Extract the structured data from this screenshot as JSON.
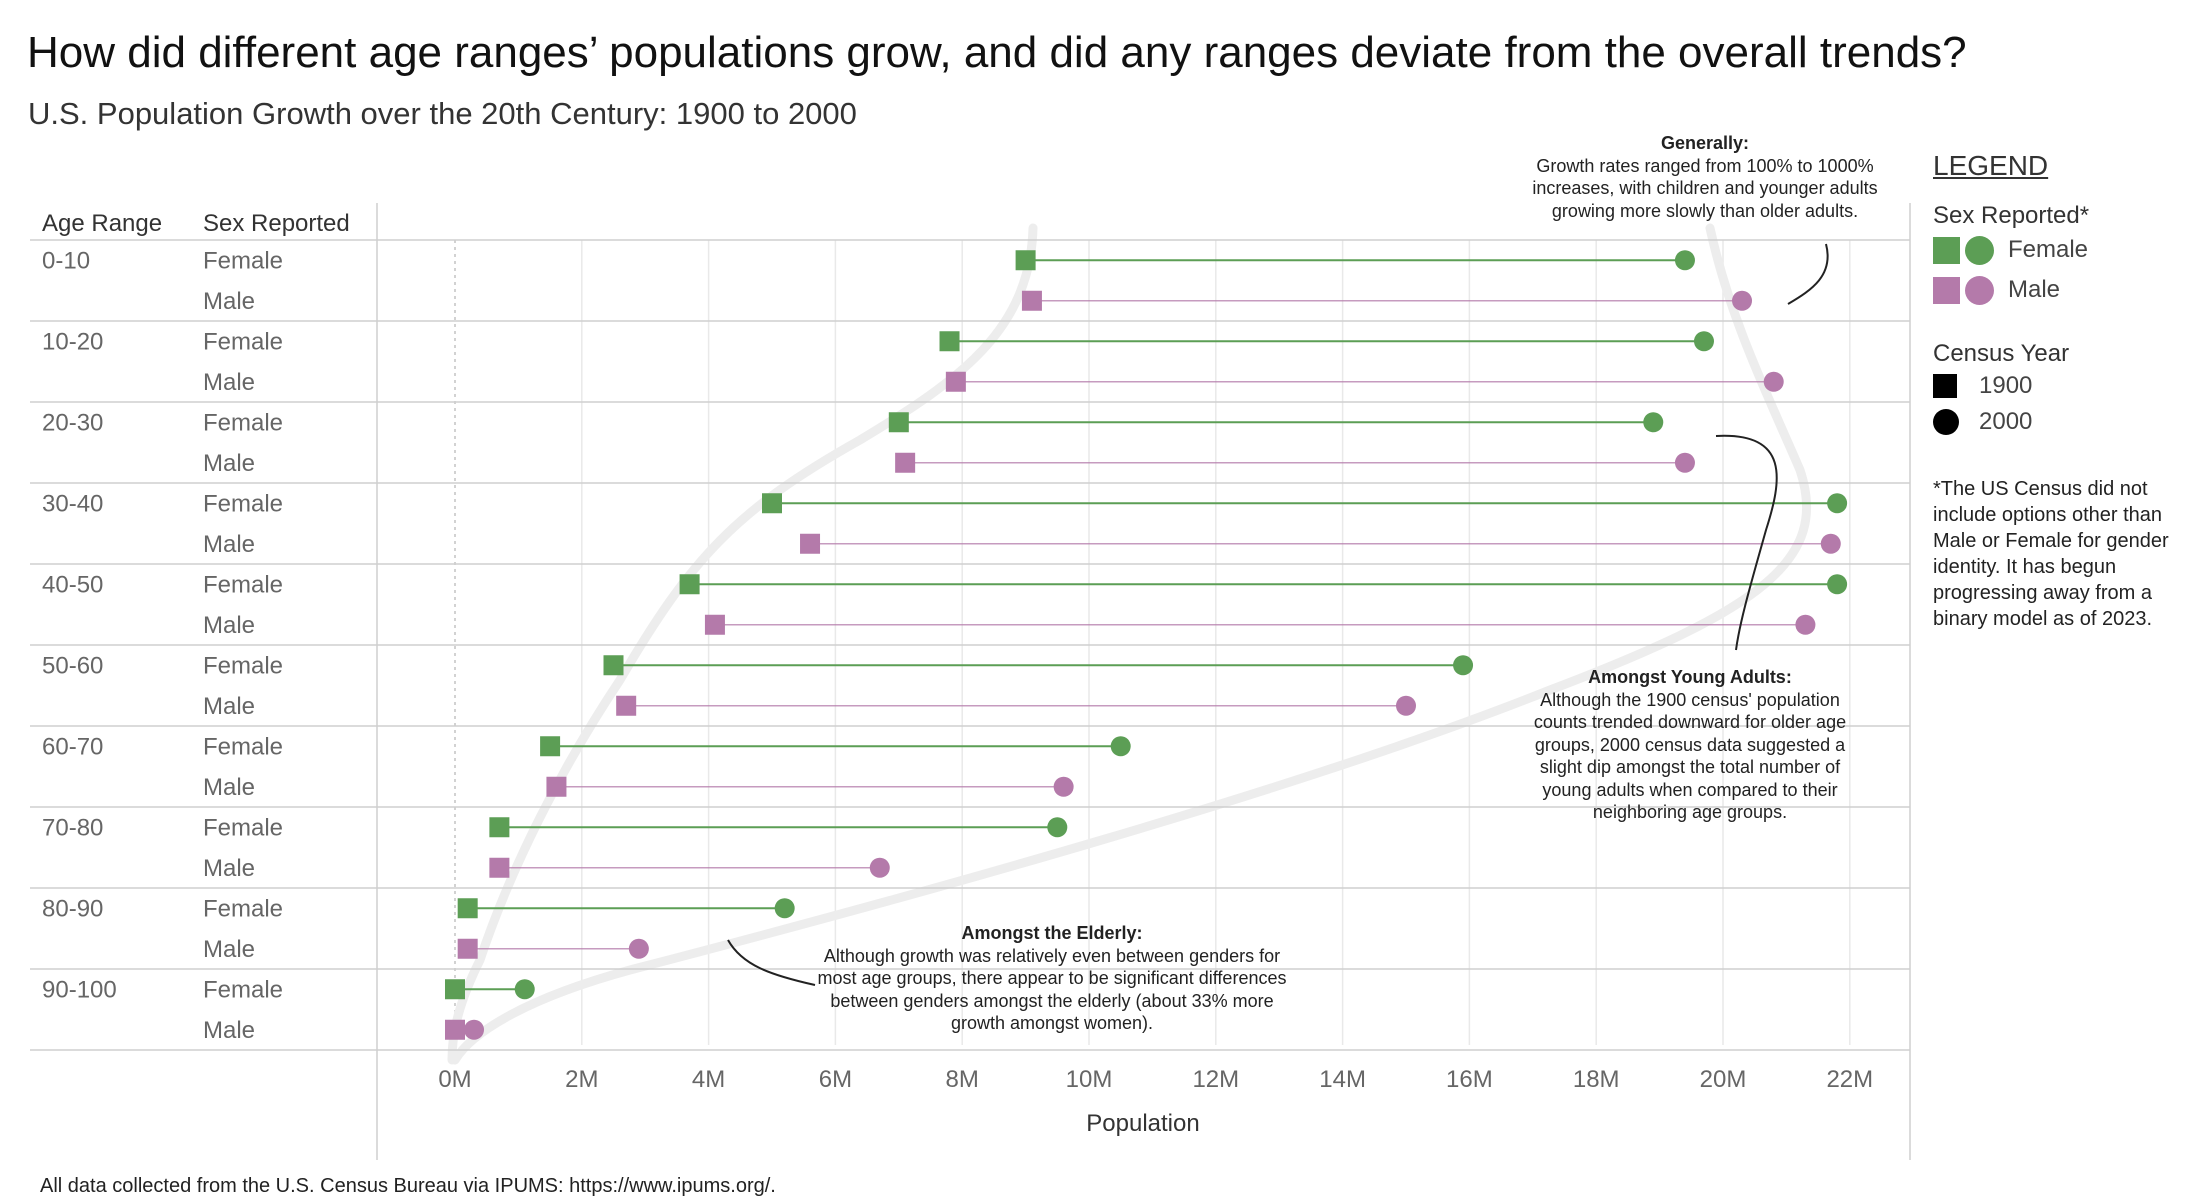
{
  "header": {
    "title": "How did different age ranges’ populations grow, and did any ranges deviate from the overall trends?",
    "subtitle": "U.S. Population Growth over the 20th Century: 1900 to 2000"
  },
  "table_headers": {
    "age_range": "Age Range",
    "sex_reported": "Sex Reported"
  },
  "colors": {
    "female": "#5c9e55",
    "male": "#b47aaa",
    "gridline": "#e9e9e9",
    "separator": "#cfcfcf",
    "trend": "#ededed"
  },
  "legend": {
    "title": "LEGEND",
    "sex_title": "Sex Reported*",
    "sex_items": [
      {
        "label": "Female",
        "color": "#5c9e55"
      },
      {
        "label": "Male",
        "color": "#b47aaa"
      }
    ],
    "year_title": "Census Year",
    "year_items": [
      {
        "label": "1900",
        "shape": "square"
      },
      {
        "label": "2000",
        "shape": "circle"
      }
    ],
    "note": "*The US Census did not include options other than Male or Female for gender identity. It has begun progressing away from a binary model as of 2023."
  },
  "annotations": {
    "generally": {
      "heading": "Generally:",
      "body": "Growth rates ranged from 100% to 1000% increases, with children and younger adults growing more slowly than older adults."
    },
    "young_adults": {
      "heading": "Amongst Young Adults:",
      "body": "Although the 1900 census' population counts trended downward for older age groups, 2000 census data suggested a slight dip amongst the total number of young adults when compared to their neighboring age groups."
    },
    "elderly": {
      "heading": "Amongst the Elderly:",
      "body": "Although growth was relatively even between genders for most age groups, there appear to be significant differences between genders amongst the elderly (about 33% more growth amongst women)."
    }
  },
  "footer": "All data collected from the U.S. Census Bureau via IPUMS: https://www.ipums.org/.",
  "chart_data": {
    "type": "dumbbell",
    "title": "U.S. Population Growth over the 20th Century: 1900 to 2000",
    "xlabel": "Population",
    "xlim": [
      -1.2,
      23
    ],
    "x_ticks": [
      0,
      2,
      4,
      6,
      8,
      10,
      12,
      14,
      16,
      18,
      20,
      22
    ],
    "x_tick_labels": [
      "0M",
      "2M",
      "4M",
      "6M",
      "8M",
      "10M",
      "12M",
      "14M",
      "16M",
      "18M",
      "20M",
      "22M"
    ],
    "value_unit": "millions",
    "series": [
      {
        "name": "1900",
        "shape": "square"
      },
      {
        "name": "2000",
        "shape": "circle"
      }
    ],
    "groups": [
      {
        "age_range": "0-10",
        "rows": [
          {
            "sex": "Female",
            "y1900": 9.0,
            "y2000": 19.4
          },
          {
            "sex": "Male",
            "y1900": 9.1,
            "y2000": 20.3
          }
        ]
      },
      {
        "age_range": "10-20",
        "rows": [
          {
            "sex": "Female",
            "y1900": 7.8,
            "y2000": 19.7
          },
          {
            "sex": "Male",
            "y1900": 7.9,
            "y2000": 20.8
          }
        ]
      },
      {
        "age_range": "20-30",
        "rows": [
          {
            "sex": "Female",
            "y1900": 7.0,
            "y2000": 18.9
          },
          {
            "sex": "Male",
            "y1900": 7.1,
            "y2000": 19.4
          }
        ]
      },
      {
        "age_range": "30-40",
        "rows": [
          {
            "sex": "Female",
            "y1900": 5.0,
            "y2000": 21.8
          },
          {
            "sex": "Male",
            "y1900": 5.6,
            "y2000": 21.7
          }
        ]
      },
      {
        "age_range": "40-50",
        "rows": [
          {
            "sex": "Female",
            "y1900": 3.7,
            "y2000": 21.8
          },
          {
            "sex": "Male",
            "y1900": 4.1,
            "y2000": 21.3
          }
        ]
      },
      {
        "age_range": "50-60",
        "rows": [
          {
            "sex": "Female",
            "y1900": 2.5,
            "y2000": 15.9
          },
          {
            "sex": "Male",
            "y1900": 2.7,
            "y2000": 15.0
          }
        ]
      },
      {
        "age_range": "60-70",
        "rows": [
          {
            "sex": "Female",
            "y1900": 1.5,
            "y2000": 10.5
          },
          {
            "sex": "Male",
            "y1900": 1.6,
            "y2000": 9.6
          }
        ]
      },
      {
        "age_range": "70-80",
        "rows": [
          {
            "sex": "Female",
            "y1900": 0.7,
            "y2000": 9.5
          },
          {
            "sex": "Male",
            "y1900": 0.7,
            "y2000": 6.7
          }
        ]
      },
      {
        "age_range": "80-90",
        "rows": [
          {
            "sex": "Female",
            "y1900": 0.2,
            "y2000": 5.2
          },
          {
            "sex": "Male",
            "y1900": 0.2,
            "y2000": 2.9
          }
        ]
      },
      {
        "age_range": "90-100",
        "rows": [
          {
            "sex": "Female",
            "y1900": 0.0,
            "y2000": 1.1
          },
          {
            "sex": "Male",
            "y1900": 0.0,
            "y2000": 0.3
          }
        ]
      }
    ]
  }
}
